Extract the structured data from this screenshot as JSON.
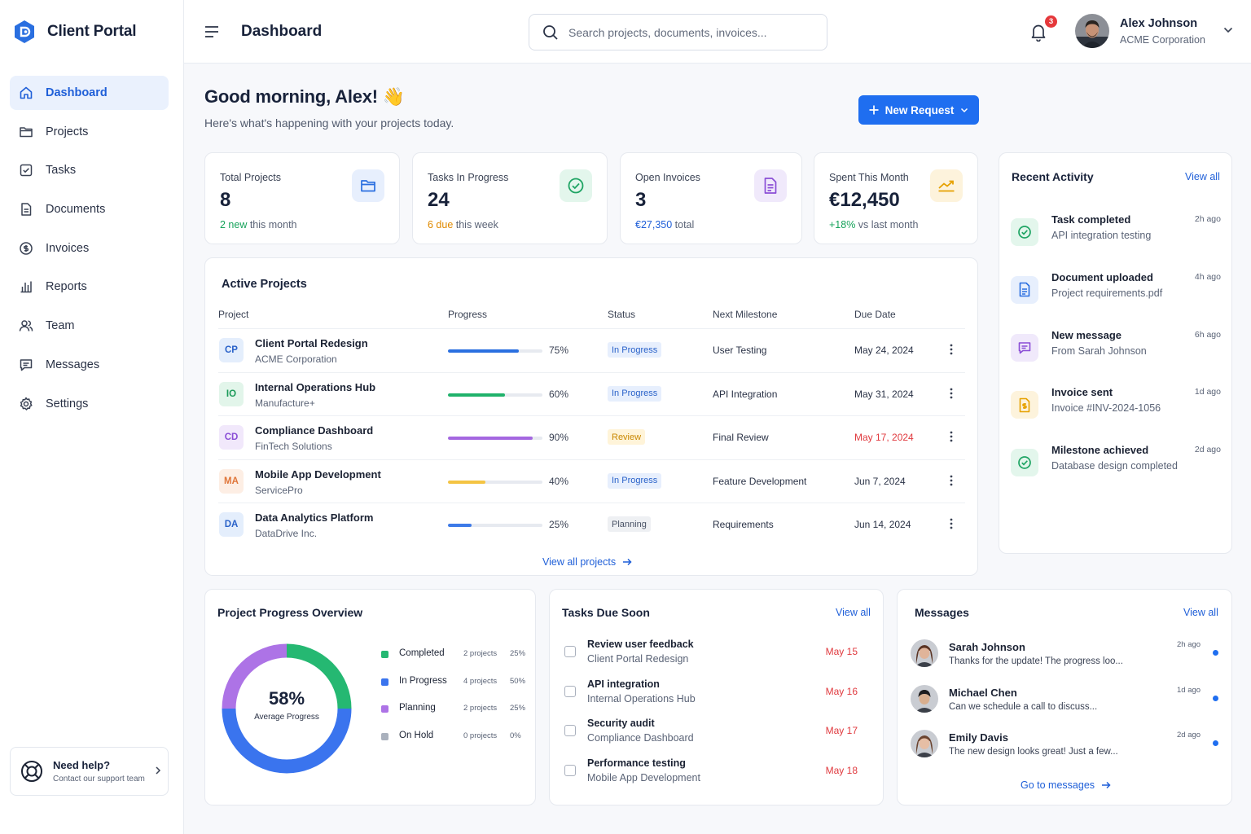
{
  "app": {
    "name": "Client Portal",
    "accent": "#1f6ef0"
  },
  "sidebar": {
    "items": [
      {
        "label": "Dashboard",
        "icon": "home-icon",
        "active": true
      },
      {
        "label": "Projects",
        "icon": "folder-icon"
      },
      {
        "label": "Tasks",
        "icon": "checkbox-icon"
      },
      {
        "label": "Documents",
        "icon": "document-icon"
      },
      {
        "label": "Invoices",
        "icon": "dollar-circle-icon"
      },
      {
        "label": "Reports",
        "icon": "bar-chart-icon"
      },
      {
        "label": "Team",
        "icon": "users-icon"
      },
      {
        "label": "Messages",
        "icon": "chat-icon"
      },
      {
        "label": "Settings",
        "icon": "gear-icon"
      }
    ],
    "help": {
      "title": "Need help?",
      "subtitle": "Contact our support team",
      "icon": "lifebuoy-icon"
    }
  },
  "header": {
    "title": "Dashboard",
    "search_placeholder": "Search projects, documents, invoices...",
    "notifications_count": "3",
    "user": {
      "name": "Alex Johnson",
      "org": "ACME Corporation"
    }
  },
  "greeting": {
    "title": "Good morning, Alex! 👋",
    "subtitle": "Here's what's happening with your projects today.",
    "new_request": "New Request"
  },
  "stats": [
    {
      "label": "Total Projects",
      "value": "8",
      "highlight": "2 new",
      "rest": " this month",
      "highlight_color": "#17a35b",
      "icon": "folder-icon",
      "icon_bg": "#e7effd",
      "icon_color": "#2a6fe0"
    },
    {
      "label": "Tasks In Progress",
      "value": "24",
      "highlight": "6 due",
      "rest": " this week",
      "highlight_color": "#e08a00",
      "icon": "check-circle-icon",
      "icon_bg": "#e3f6ec",
      "icon_color": "#1ea463"
    },
    {
      "label": "Open Invoices",
      "value": "3",
      "highlight": "€27,350",
      "rest": " total",
      "highlight_color": "#1f5fd8",
      "icon": "invoice-icon",
      "icon_bg": "#f0e9fb",
      "icon_color": "#8a4ed6"
    },
    {
      "label": "Spent This Month",
      "value": "€12,450",
      "highlight": "+18%",
      "rest": " vs last month",
      "highlight_color": "#17a35b",
      "icon": "trend-up-icon",
      "icon_bg": "#fdf3dc",
      "icon_color": "#e6a100"
    }
  ],
  "projects": {
    "title": "Active Projects",
    "columns": [
      "Project",
      "Progress",
      "Status",
      "Next Milestone",
      "Due Date"
    ],
    "rows": [
      {
        "initials": "CP",
        "name": "Client Portal Redesign",
        "client": "ACME Corporation",
        "progress": 0.75,
        "progress_label": "75%",
        "bar_color": "#2a6fe0",
        "status": "In Progress",
        "status_bg": "#e7effd",
        "status_color": "#2a62c9",
        "milestone": "User Testing",
        "due": "May 24, 2024",
        "due_color": "#2a3246",
        "av_bg": "#e4eefc",
        "av_color": "#2a62c9"
      },
      {
        "initials": "IO",
        "name": "Internal Operations Hub",
        "client": "Manufacture+",
        "progress": 0.6,
        "progress_label": "60%",
        "bar_color": "#20b26b",
        "status": "In Progress",
        "status_bg": "#e7effd",
        "status_color": "#2a62c9",
        "milestone": "API Integration",
        "due": "May 31, 2024",
        "due_color": "#2a3246",
        "av_bg": "#e2f5ea",
        "av_color": "#1a9a58"
      },
      {
        "initials": "CD",
        "name": "Compliance Dashboard",
        "client": "FinTech Solutions",
        "progress": 0.9,
        "progress_label": "90%",
        "bar_color": "#a467e0",
        "status": "Review",
        "status_bg": "#fff4d9",
        "status_color": "#c98700",
        "milestone": "Final Review",
        "due": "May 17, 2024",
        "due_color": "#e0393e",
        "av_bg": "#f1e8fb",
        "av_color": "#8a4ed6"
      },
      {
        "initials": "MA",
        "name": "Mobile App Development",
        "client": "ServicePro",
        "progress": 0.4,
        "progress_label": "40%",
        "bar_color": "#f4c443",
        "status": "In Progress",
        "status_bg": "#e7effd",
        "status_color": "#2a62c9",
        "milestone": "Feature Development",
        "due": "Jun 7, 2024",
        "due_color": "#2a3246",
        "av_bg": "#fdeee4",
        "av_color": "#e0763a"
      },
      {
        "initials": "DA",
        "name": "Data Analytics Platform",
        "client": "DataDrive Inc.",
        "progress": 0.25,
        "progress_label": "25%",
        "bar_color": "#3d7ae8",
        "status": "Planning",
        "status_bg": "#eef0f3",
        "status_color": "#4a5366",
        "milestone": "Requirements",
        "due": "Jun 14, 2024",
        "due_color": "#2a3246",
        "av_bg": "#e4eefc",
        "av_color": "#2a62c9"
      }
    ],
    "view_all": "View all projects"
  },
  "activity": {
    "title": "Recent Activity",
    "view_all": "View all",
    "items": [
      {
        "title": "Task completed",
        "sub": "API integration testing",
        "time": "2h ago",
        "icon": "check-circle-icon",
        "bg": "#e3f6ec",
        "color": "#1ea463"
      },
      {
        "title": "Document uploaded",
        "sub": "Project requirements.pdf",
        "time": "4h ago",
        "icon": "document-icon",
        "bg": "#e7effd",
        "color": "#2a6fe0"
      },
      {
        "title": "New message",
        "sub": "From Sarah Johnson",
        "time": "6h ago",
        "icon": "chat-icon",
        "bg": "#f0e9fb",
        "color": "#8a4ed6"
      },
      {
        "title": "Invoice sent",
        "sub": "Invoice #INV-2024-1056",
        "time": "1d ago",
        "icon": "invoice-dollar-icon",
        "bg": "#fdf3dc",
        "color": "#e6a100"
      },
      {
        "title": "Milestone achieved",
        "sub": "Database design completed",
        "time": "2d ago",
        "icon": "check-circle-icon",
        "bg": "#e3f6ec",
        "color": "#1ea463"
      }
    ]
  },
  "overview": {
    "title": "Project Progress Overview",
    "center_value": "58%",
    "center_label": "Average Progress",
    "legend": [
      {
        "name": "Completed",
        "count": "2 projects",
        "pct": "25%",
        "share": 25,
        "color": "#25b872"
      },
      {
        "name": "In Progress",
        "count": "4 projects",
        "pct": "50%",
        "share": 50,
        "color": "#3a74ee"
      },
      {
        "name": "Planning",
        "count": "2 projects",
        "pct": "25%",
        "share": 25,
        "color": "#ad73e6"
      },
      {
        "name": "On Hold",
        "count": "0 projects",
        "pct": "0%",
        "share": 0,
        "color": "#aab1bd"
      }
    ]
  },
  "tasks_due": {
    "title": "Tasks Due Soon",
    "view_all": "View all",
    "items": [
      {
        "name": "Review user feedback",
        "project": "Client Portal Redesign",
        "date": "May 15"
      },
      {
        "name": "API integration",
        "project": "Internal Operations Hub",
        "date": "May 16"
      },
      {
        "name": "Security audit",
        "project": "Compliance Dashboard",
        "date": "May 17"
      },
      {
        "name": "Performance testing",
        "project": "Mobile App Development",
        "date": "May 18"
      }
    ]
  },
  "messages": {
    "title": "Messages",
    "view_all": "View all",
    "items": [
      {
        "name": "Sarah Johnson",
        "text": "Thanks for the update! The progress loo...",
        "time": "2h ago"
      },
      {
        "name": "Michael Chen",
        "text": "Can we schedule a call to discuss...",
        "time": "1d ago"
      },
      {
        "name": "Emily Davis",
        "text": "The new design looks great! Just a few...",
        "time": "2d ago"
      }
    ],
    "go_to": "Go to messages"
  }
}
